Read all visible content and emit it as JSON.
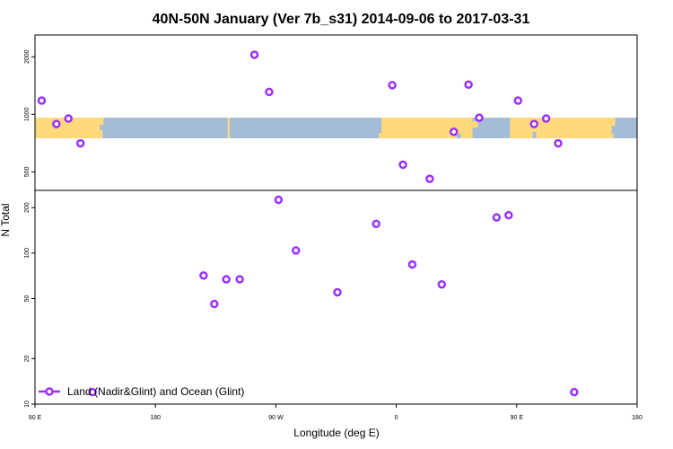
{
  "chart_data": {
    "type": "scatter",
    "title": "40N-50N January (Ver 7b_s31)   2014-09-06 to 2017-03-31",
    "xlabel": "Longitude (deg E)",
    "ylabel": "N Total",
    "x_tick_labels": [
      "90 E",
      "180",
      "90 W",
      "0",
      "90 E",
      "180"
    ],
    "x_tick_values": [
      90,
      180,
      270,
      360,
      450,
      540
    ],
    "xlim": [
      90,
      540
    ],
    "colors": {
      "marker": "#9b30ff",
      "ocean": "#a5bcd9",
      "land": "#ffd97a"
    },
    "top_panel": {
      "scale": "log",
      "ylim": [
        400,
        2600
      ],
      "y_ticks": [
        500,
        1000,
        2000
      ],
      "y_tick_labels": [
        "500",
        "1000",
        "2000"
      ],
      "map_strip_lat_range": "40N-50N",
      "points": [
        {
          "x": 95,
          "y": 1180
        },
        {
          "x": 106,
          "y": 890
        },
        {
          "x": 115,
          "y": 950
        },
        {
          "x": 124,
          "y": 705
        },
        {
          "x": 254,
          "y": 2050
        },
        {
          "x": 265,
          "y": 1310
        },
        {
          "x": 357,
          "y": 1420
        },
        {
          "x": 365,
          "y": 545
        },
        {
          "x": 385,
          "y": 460
        },
        {
          "x": 403,
          "y": 810
        },
        {
          "x": 414,
          "y": 1430
        },
        {
          "x": 422,
          "y": 960
        },
        {
          "x": 451,
          "y": 1180
        },
        {
          "x": 463,
          "y": 890
        },
        {
          "x": 472,
          "y": 950
        },
        {
          "x": 481,
          "y": 705
        }
      ]
    },
    "bottom_panel": {
      "scale": "log",
      "ylim": [
        10,
        260
      ],
      "y_ticks": [
        10,
        20,
        50,
        100,
        200
      ],
      "y_tick_labels": [
        "10",
        "20",
        "50",
        "100",
        "200"
      ],
      "points": [
        {
          "x": 133,
          "y": 12
        },
        {
          "x": 216,
          "y": 71
        },
        {
          "x": 224,
          "y": 46
        },
        {
          "x": 233,
          "y": 67
        },
        {
          "x": 243,
          "y": 67
        },
        {
          "x": 272,
          "y": 225
        },
        {
          "x": 285,
          "y": 104
        },
        {
          "x": 316,
          "y": 55
        },
        {
          "x": 345,
          "y": 156
        },
        {
          "x": 372,
          "y": 84
        },
        {
          "x": 394,
          "y": 62
        },
        {
          "x": 435,
          "y": 172
        },
        {
          "x": 444,
          "y": 178
        },
        {
          "x": 493,
          "y": 12
        }
      ]
    },
    "legend": {
      "position": "bottom-left",
      "label": "Land (Nadir&Glint) and Ocean (Glint)"
    }
  }
}
